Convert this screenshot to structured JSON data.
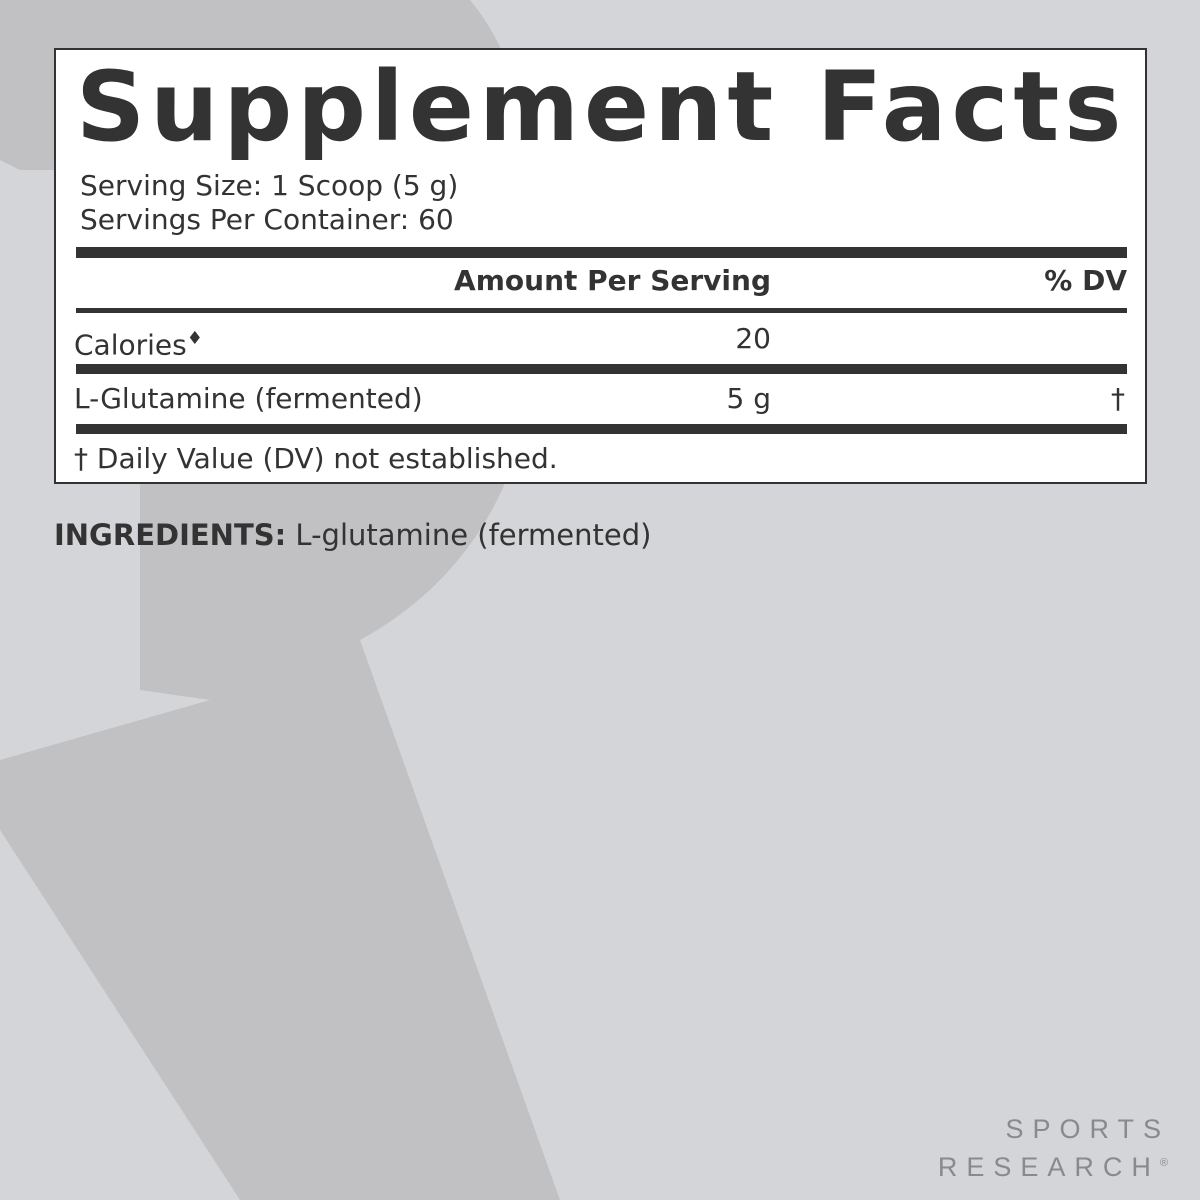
{
  "background_colors": {
    "page": "#d4d5d8",
    "watermark": "#c1c1c3",
    "text": "#333333",
    "logo": "#8a8a8c"
  },
  "label": {
    "title": "Supplement Facts",
    "serving_size": "Serving Size: 1 Scoop (5 g)",
    "servings_per_container": "Servings Per Container: 60",
    "header_amount": "Amount Per Serving",
    "header_dv": "% DV",
    "rows": [
      {
        "name": "Calories",
        "marker": "♦",
        "amount": "20",
        "dv": ""
      },
      {
        "name": "L-Glutamine (fermented)",
        "marker": "",
        "amount": "5 g",
        "dv": "†"
      }
    ],
    "footnote": "† Daily Value (DV) not established."
  },
  "ingredients": {
    "label": "INGREDIENTS:",
    "text": " L-glutamine (fermented)"
  },
  "logo": {
    "line1": "SPORTS",
    "line2": "RESEARCH",
    "mark": "®"
  }
}
